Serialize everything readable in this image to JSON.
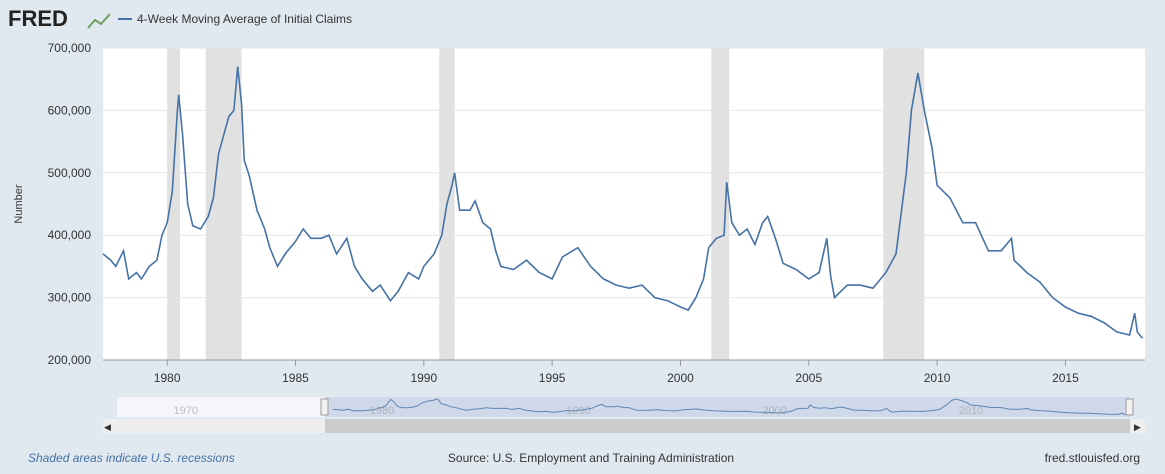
{
  "logo": "FRED",
  "footer": {
    "note": "Shaded areas indicate U.S. recessions",
    "source": "Source: U.S. Employment and Training Administration",
    "site": "fred.stlouisfed.org"
  },
  "chart_data": {
    "type": "line",
    "y_label": "Number",
    "xlim": [
      1977.5,
      2018.1
    ],
    "xticks": [
      1980,
      1985,
      1990,
      1995,
      2000,
      2005,
      2010,
      2015
    ],
    "ylim": [
      200000,
      700000
    ],
    "yticks": [
      {
        "value": 200000,
        "label": "200,000"
      },
      {
        "value": 300000,
        "label": "300,000"
      },
      {
        "value": 400000,
        "label": "400,000"
      },
      {
        "value": 500000,
        "label": "500,000"
      },
      {
        "value": 600000,
        "label": "600,000"
      },
      {
        "value": 700000,
        "label": "700,000"
      }
    ],
    "grid": true,
    "recessions": [
      [
        1980.0,
        1980.5
      ],
      [
        1981.5,
        1982.9
      ],
      [
        1990.6,
        1991.2
      ],
      [
        2001.2,
        2001.9
      ],
      [
        2007.9,
        2009.5
      ]
    ],
    "recession_color": "#e1e1e1",
    "x": [
      1977.5,
      1977.8,
      1978.0,
      1978.3,
      1978.5,
      1978.8,
      1979.0,
      1979.3,
      1979.6,
      1979.8,
      1980.0,
      1980.2,
      1980.4,
      1980.45,
      1980.6,
      1980.8,
      1981.0,
      1981.3,
      1981.6,
      1981.8,
      1982.0,
      1982.2,
      1982.4,
      1982.6,
      1982.75,
      1982.9,
      1983.0,
      1983.2,
      1983.5,
      1983.8,
      1984.0,
      1984.3,
      1984.6,
      1985.0,
      1985.3,
      1985.6,
      1986.0,
      1986.3,
      1986.6,
      1987.0,
      1987.3,
      1987.6,
      1988.0,
      1988.3,
      1988.7,
      1989.0,
      1989.4,
      1989.8,
      1990.0,
      1990.4,
      1990.7,
      1990.9,
      1991.1,
      1991.2,
      1991.4,
      1991.8,
      1992.0,
      1992.3,
      1992.6,
      1992.8,
      1993.0,
      1993.5,
      1994.0,
      1994.5,
      1995.0,
      1995.4,
      1995.8,
      1996.0,
      1996.5,
      1997.0,
      1997.5,
      1998.0,
      1998.5,
      1999.0,
      1999.5,
      2000.0,
      2000.3,
      2000.6,
      2000.9,
      2001.1,
      2001.4,
      2001.7,
      2001.8,
      2002.0,
      2002.3,
      2002.6,
      2002.9,
      2003.2,
      2003.4,
      2003.7,
      2004.0,
      2004.5,
      2005.0,
      2005.4,
      2005.7,
      2005.85,
      2006.0,
      2006.5,
      2007.0,
      2007.5,
      2008.0,
      2008.4,
      2008.8,
      2009.0,
      2009.25,
      2009.5,
      2009.8,
      2010.0,
      2010.5,
      2011.0,
      2011.5,
      2012.0,
      2012.5,
      2012.9,
      2013.0,
      2013.5,
      2014.0,
      2014.5,
      2015.0,
      2015.5,
      2016.0,
      2016.5,
      2017.0,
      2017.5,
      2017.7,
      2017.8,
      2018.0
    ],
    "series": [
      {
        "name": "4-Week Moving Average of Initial Claims",
        "color": "#4572a7",
        "values": [
          370000,
          360000,
          350000,
          375000,
          330000,
          340000,
          330000,
          350000,
          360000,
          400000,
          420000,
          470000,
          600000,
          625000,
          560000,
          450000,
          415000,
          410000,
          430000,
          460000,
          530000,
          560000,
          590000,
          600000,
          670000,
          610000,
          520000,
          495000,
          440000,
          410000,
          380000,
          350000,
          370000,
          390000,
          410000,
          395000,
          395000,
          400000,
          370000,
          395000,
          350000,
          330000,
          310000,
          320000,
          295000,
          310000,
          340000,
          330000,
          350000,
          370000,
          400000,
          450000,
          480000,
          500000,
          440000,
          440000,
          455000,
          420000,
          410000,
          375000,
          350000,
          345000,
          360000,
          340000,
          330000,
          365000,
          375000,
          380000,
          350000,
          330000,
          320000,
          315000,
          320000,
          300000,
          295000,
          285000,
          280000,
          300000,
          330000,
          380000,
          395000,
          400000,
          485000,
          420000,
          400000,
          410000,
          385000,
          420000,
          430000,
          395000,
          355000,
          345000,
          330000,
          340000,
          395000,
          335000,
          300000,
          320000,
          320000,
          315000,
          340000,
          370000,
          500000,
          600000,
          660000,
          600000,
          540000,
          480000,
          460000,
          420000,
          420000,
          375000,
          375000,
          395000,
          360000,
          340000,
          325000,
          300000,
          285000,
          275000,
          270000,
          260000,
          245000,
          240000,
          275000,
          245000,
          235000
        ]
      }
    ],
    "navigator": {
      "xlim": [
        1966.5,
        2018.1
      ],
      "xticks": [
        1970,
        1980,
        1990,
        2000,
        2010
      ]
    }
  }
}
